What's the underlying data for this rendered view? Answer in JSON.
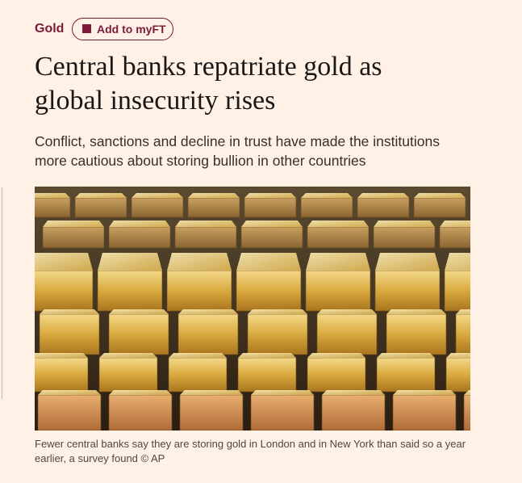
{
  "tag": "Gold",
  "button": "Add to myFT",
  "headline": "Central banks repatriate gold as global insecurity rises",
  "standfirst": "Conflict, sanctions and decline in trust have made the institutions more cautious about storing bullion in other countries",
  "caption": "Fewer central banks say they are storing gold in London and in New York than said so a year earlier, a survey found © AP"
}
